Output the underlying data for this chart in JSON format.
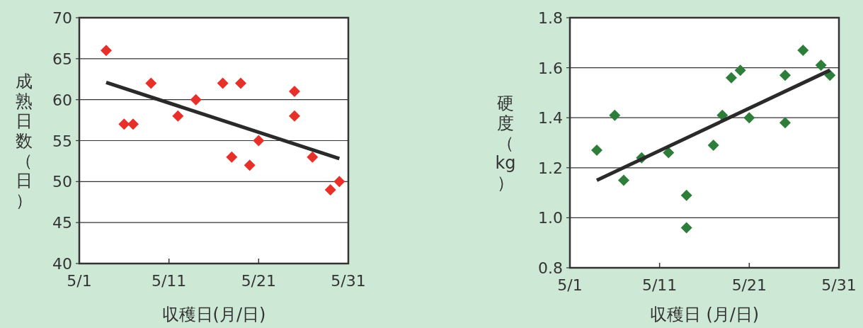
{
  "chart_data": [
    {
      "type": "scatter",
      "xlabel": "収穫日(月/日)",
      "ylabel": "成熟日数（日）",
      "xlim": [
        "--05-01",
        "--05-31"
      ],
      "xticks": [
        {
          "value": "--05-01",
          "label": "5/1"
        },
        {
          "value": "--05-11",
          "label": "5/11"
        },
        {
          "value": "--05-21",
          "label": "5/21"
        },
        {
          "value": "--05-31",
          "label": "5/31"
        }
      ],
      "ylim": [
        40,
        70
      ],
      "yticks": [
        40,
        45,
        50,
        55,
        60,
        65,
        70
      ],
      "grid": "y",
      "marker": "diamond",
      "x": [
        "--05-04",
        "--05-06",
        "--05-07",
        "--05-09",
        "--05-12",
        "--05-14",
        "--05-17",
        "--05-18",
        "--05-19",
        "--05-20",
        "--05-21",
        "--05-25",
        "--05-25",
        "--05-27",
        "--05-29",
        "--05-30"
      ],
      "series": [
        {
          "color": "#e8302a",
          "values": [
            66,
            57,
            57,
            62,
            58,
            60,
            62,
            53,
            62,
            52,
            55,
            61,
            58,
            53,
            49,
            50
          ]
        },
        {
          "type": "line",
          "color": "#2a2a2a",
          "marker": "none",
          "x": [
            "--05-04",
            "--05-30"
          ],
          "values": [
            62.1,
            52.8
          ]
        }
      ]
    },
    {
      "type": "scatter",
      "xlabel": "収穫日 (月/日)",
      "ylabel": "硬度（kg）",
      "xlim": [
        "--05-01",
        "--05-31"
      ],
      "xticks": [
        {
          "value": "--05-01",
          "label": "5/1"
        },
        {
          "value": "--05-11",
          "label": "5/11"
        },
        {
          "value": "--05-21",
          "label": "5/21"
        },
        {
          "value": "--05-31",
          "label": "5/31"
        }
      ],
      "ylim": [
        0.8,
        1.8
      ],
      "yticks": [
        {
          "value": 0.8,
          "label": "0.8"
        },
        {
          "value": 1.0,
          "label": "1.0"
        },
        {
          "value": 1.2,
          "label": "1.2"
        },
        {
          "value": 1.4,
          "label": "1.4"
        },
        {
          "value": 1.6,
          "label": "1.6"
        },
        {
          "value": 1.8,
          "label": "1.8"
        }
      ],
      "grid": "y",
      "marker": "diamond",
      "x": [
        "--05-04",
        "--05-06",
        "--05-07",
        "--05-09",
        "--05-12",
        "--05-14",
        "--05-14",
        "--05-17",
        "--05-18",
        "--05-19",
        "--05-20",
        "--05-21",
        "--05-25",
        "--05-25",
        "--05-27",
        "--05-29",
        "--05-30"
      ],
      "series": [
        {
          "color": "#2e7d3a",
          "values": [
            1.27,
            1.41,
            1.15,
            1.24,
            1.26,
            1.09,
            0.96,
            1.29,
            1.41,
            1.56,
            1.59,
            1.4,
            1.57,
            1.38,
            1.67,
            1.61,
            1.57
          ]
        },
        {
          "type": "line",
          "color": "#2a2a2a",
          "marker": "none",
          "x": [
            "--05-04",
            "--05-30"
          ],
          "values": [
            1.15,
            1.59
          ]
        }
      ]
    }
  ]
}
